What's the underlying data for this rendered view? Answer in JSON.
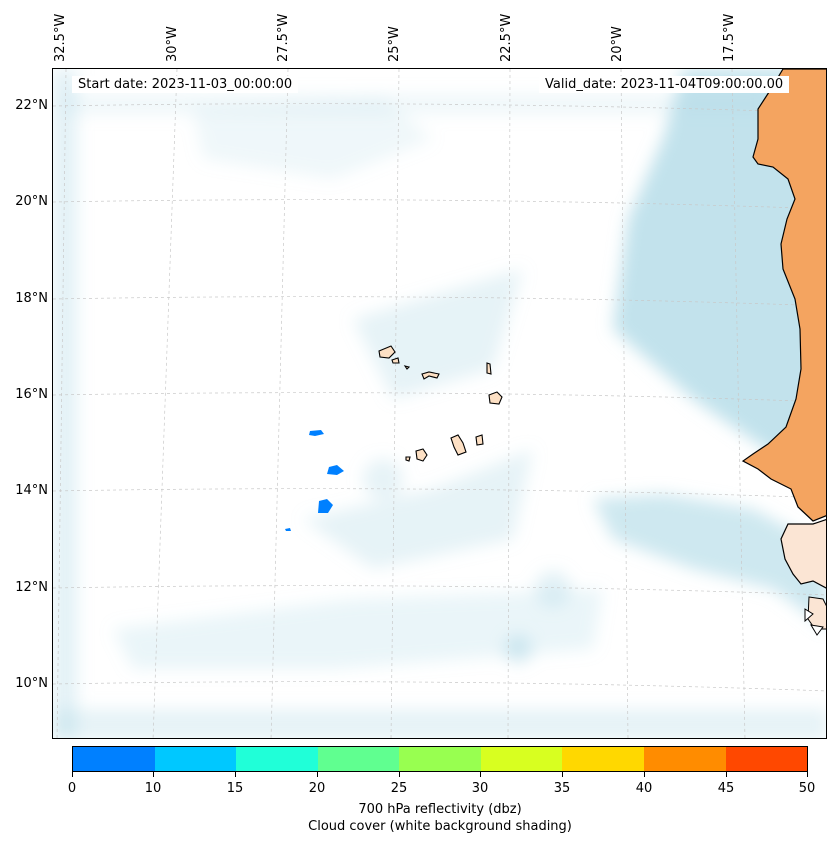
{
  "start_date": "Start date: 2023-11-03_00:00:00",
  "valid_date": "Valid_date: 2023-11-04T09:00:00.00",
  "lon_labels": [
    "32.5°W",
    "30°W",
    "27.5°W",
    "25°W",
    "22.5°W",
    "20°W",
    "17.5°W"
  ],
  "lat_labels": [
    "22°N",
    "20°N",
    "18°N",
    "16°N",
    "14°N",
    "12°N",
    "10°N"
  ],
  "colorbar": {
    "ticks": [
      "0",
      "10",
      "15",
      "20",
      "25",
      "30",
      "35",
      "40",
      "45",
      "50"
    ],
    "colors": [
      "#0080ff",
      "#00c8ff",
      "#20ffd8",
      "#60ff90",
      "#98ff50",
      "#d8ff20",
      "#ffd800",
      "#ff8c00",
      "#ff4800"
    ],
    "label": "700 hPa reflectivity (dbz)",
    "sublabel": "Cloud cover (white background shading)"
  },
  "map_colors": {
    "land": "#f4a460",
    "cloud": "#add8e6",
    "island": "#fde0c4",
    "echo": "#0080ff"
  }
}
